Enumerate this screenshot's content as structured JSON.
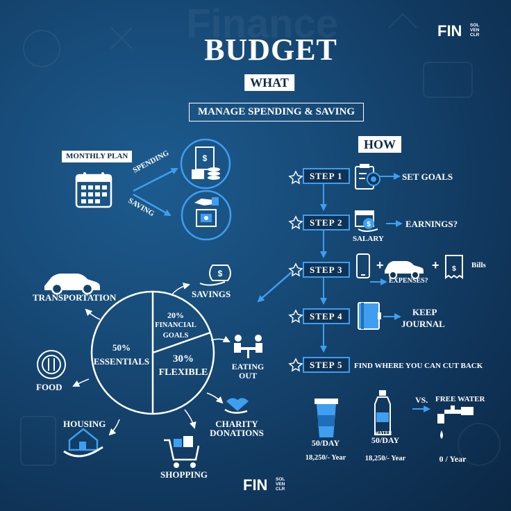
{
  "header": {
    "title": "BUDGET",
    "what_label": "WHAT",
    "subtitle": "MANAGE SPENDING & SAVING",
    "background_word": "Finance"
  },
  "brand": {
    "name": "FIN",
    "sub_lines": [
      "SOL",
      "VEN",
      "CLR"
    ]
  },
  "monthly": {
    "plan_label": "MONTHLY PLAN",
    "spending_label": "SPENDING",
    "saving_label": "SAVING"
  },
  "how": {
    "label": "HOW",
    "steps": [
      {
        "label": "STEP 1",
        "result": "SET GOALS"
      },
      {
        "label": "STEP 2",
        "result": "EARNINGS?",
        "caption": "SALARY"
      },
      {
        "label": "STEP 3",
        "result": "Bills",
        "caption": "EXPENSES?"
      },
      {
        "label": "STEP 4",
        "result_line1": "KEEP",
        "result_line2": "JOURNAL"
      },
      {
        "label": "STEP 5",
        "result": "FIND WHERE YOU CAN CUT BACK"
      }
    ]
  },
  "pie": {
    "segments": [
      {
        "pct": "50%",
        "name": "ESSENTIALS",
        "share": 50
      },
      {
        "pct": "20%",
        "name_line1": "FINANCIAL",
        "name_line2": "GOALS",
        "share": 20
      },
      {
        "pct": "30%",
        "name": "FLEXIBLE",
        "share": 30
      }
    ],
    "essentials": [
      "TRANSPORTATION",
      "FOOD",
      "HOUSING"
    ],
    "goals": [
      "SAVINGS"
    ],
    "flexible": [
      {
        "line1": "EATING",
        "line2": "OUT"
      },
      {
        "line1": "CHARITY",
        "line2": "DONATIONS"
      },
      {
        "line1": "SHOPPING"
      }
    ]
  },
  "comparison": {
    "coffee_per_day": "50/DAY",
    "coffee_per_year": "18,250/- Year",
    "bottle_label": "WATER",
    "water_per_day": "50/DAY",
    "water_per_year": "18,250/- Year",
    "vs_label": "VS.",
    "free_label": "FREE WATER",
    "free_per_year": "0 / Year"
  },
  "colors": {
    "accent": "#3f9ef0",
    "background": "#134270"
  }
}
